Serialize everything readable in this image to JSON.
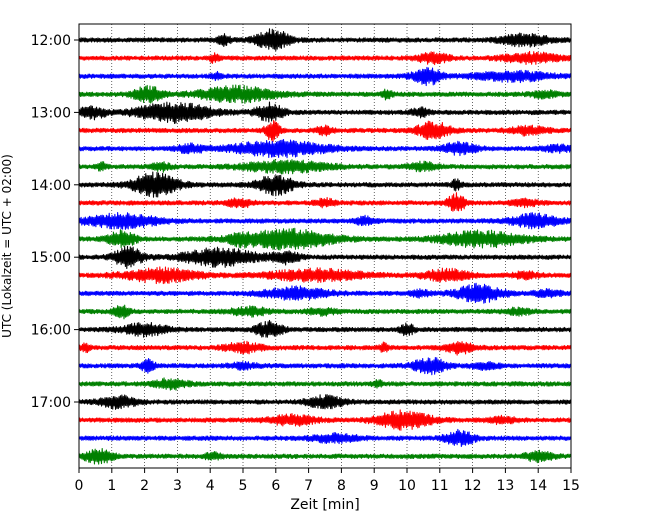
{
  "chart_data": {
    "type": "line",
    "xlabel": "Zeit  [min]",
    "ylabel": "UTC (Lokalzeit = UTC + 02:00)",
    "xlim": [
      0,
      15
    ],
    "x_ticks": [
      0,
      1,
      2,
      3,
      4,
      5,
      6,
      7,
      8,
      9,
      10,
      11,
      12,
      13,
      14,
      15
    ],
    "x_tick_labels": [
      "0",
      "1",
      "2",
      "3",
      "4",
      "5",
      "6",
      "7",
      "8",
      "9",
      "10",
      "11",
      "12",
      "13",
      "14",
      "15"
    ],
    "y_tick_labels": [
      "12:00",
      "13:00",
      "14:00",
      "15:00",
      "16:00",
      "17:00"
    ],
    "grid": "vertical dotted",
    "colors": [
      "#000000",
      "#ff0000",
      "#0000ff",
      "#008000"
    ],
    "traces": [
      {
        "start": "12:00",
        "color": "#000000",
        "bursts": [
          {
            "t": 4.4,
            "a": 0.5,
            "w": 0.15
          },
          {
            "t": 5.9,
            "a": 1.1,
            "w": 0.35
          },
          {
            "t": 13.6,
            "a": 0.6,
            "w": 0.5
          }
        ]
      },
      {
        "start": "12:15",
        "color": "#ff0000",
        "bursts": [
          {
            "t": 4.1,
            "a": 0.4,
            "w": 0.1
          },
          {
            "t": 10.8,
            "a": 0.5,
            "w": 0.35
          },
          {
            "t": 13.8,
            "a": 0.5,
            "w": 0.6
          }
        ]
      },
      {
        "start": "12:30",
        "color": "#0000ff",
        "bursts": [
          {
            "t": 4.2,
            "a": 0.3,
            "w": 0.1
          },
          {
            "t": 10.6,
            "a": 0.9,
            "w": 0.3
          },
          {
            "t": 13.2,
            "a": 0.5,
            "w": 0.8
          }
        ]
      },
      {
        "start": "12:45",
        "color": "#008000",
        "bursts": [
          {
            "t": 2.1,
            "a": 0.8,
            "w": 0.3
          },
          {
            "t": 4.8,
            "a": 0.8,
            "w": 0.8
          },
          {
            "t": 9.4,
            "a": 0.5,
            "w": 0.1
          },
          {
            "t": 14.2,
            "a": 0.3,
            "w": 0.3
          }
        ]
      },
      {
        "start": "13:00",
        "color": "#000000",
        "bursts": [
          {
            "t": 0.4,
            "a": 0.6,
            "w": 0.3
          },
          {
            "t": 2.9,
            "a": 1.0,
            "w": 0.8
          },
          {
            "t": 5.8,
            "a": 0.9,
            "w": 0.3
          },
          {
            "t": 10.4,
            "a": 0.4,
            "w": 0.2
          }
        ]
      },
      {
        "start": "13:15",
        "color": "#ff0000",
        "bursts": [
          {
            "t": 5.9,
            "a": 1.1,
            "w": 0.15
          },
          {
            "t": 7.5,
            "a": 0.4,
            "w": 0.2
          },
          {
            "t": 10.8,
            "a": 0.9,
            "w": 0.35
          },
          {
            "t": 13.7,
            "a": 0.4,
            "w": 0.4
          }
        ]
      },
      {
        "start": "13:30",
        "color": "#0000ff",
        "bursts": [
          {
            "t": 3.4,
            "a": 0.4,
            "w": 0.3
          },
          {
            "t": 6.1,
            "a": 0.8,
            "w": 1.0
          },
          {
            "t": 11.6,
            "a": 0.6,
            "w": 0.35
          },
          {
            "t": 14.6,
            "a": 0.3,
            "w": 0.3
          }
        ]
      },
      {
        "start": "13:45",
        "color": "#008000",
        "bursts": [
          {
            "t": 0.7,
            "a": 0.4,
            "w": 0.1
          },
          {
            "t": 2.5,
            "a": 0.4,
            "w": 0.2
          },
          {
            "t": 6.3,
            "a": 0.6,
            "w": 0.9
          },
          {
            "t": 10.5,
            "a": 0.4,
            "w": 0.3
          }
        ]
      },
      {
        "start": "14:00",
        "color": "#000000",
        "bursts": [
          {
            "t": 2.3,
            "a": 1.2,
            "w": 0.5
          },
          {
            "t": 6.0,
            "a": 1.0,
            "w": 0.4
          },
          {
            "t": 11.5,
            "a": 0.5,
            "w": 0.1
          }
        ]
      },
      {
        "start": "14:15",
        "color": "#ff0000",
        "bursts": [
          {
            "t": 4.9,
            "a": 0.4,
            "w": 0.3
          },
          {
            "t": 7.5,
            "a": 0.4,
            "w": 0.2
          },
          {
            "t": 11.5,
            "a": 0.9,
            "w": 0.2
          },
          {
            "t": 13.6,
            "a": 0.3,
            "w": 0.3
          }
        ]
      },
      {
        "start": "14:30",
        "color": "#0000ff",
        "bursts": [
          {
            "t": 1.3,
            "a": 0.7,
            "w": 0.8
          },
          {
            "t": 8.7,
            "a": 0.4,
            "w": 0.2
          },
          {
            "t": 13.9,
            "a": 0.7,
            "w": 0.5
          }
        ]
      },
      {
        "start": "14:45",
        "color": "#008000",
        "bursts": [
          {
            "t": 1.3,
            "a": 0.8,
            "w": 0.3
          },
          {
            "t": 4.9,
            "a": 0.4,
            "w": 0.2
          },
          {
            "t": 6.3,
            "a": 1.0,
            "w": 1.0
          },
          {
            "t": 12.3,
            "a": 0.8,
            "w": 0.9
          }
        ]
      },
      {
        "start": "15:00",
        "color": "#000000",
        "bursts": [
          {
            "t": 1.5,
            "a": 1.1,
            "w": 0.3
          },
          {
            "t": 4.3,
            "a": 0.9,
            "w": 0.8
          },
          {
            "t": 6.3,
            "a": 0.6,
            "w": 0.3
          }
        ]
      },
      {
        "start": "15:15",
        "color": "#ff0000",
        "bursts": [
          {
            "t": 2.5,
            "a": 0.7,
            "w": 0.8
          },
          {
            "t": 7.2,
            "a": 0.6,
            "w": 1.0
          },
          {
            "t": 11.2,
            "a": 0.6,
            "w": 0.5
          },
          {
            "t": 13.6,
            "a": 0.3,
            "w": 0.3
          }
        ]
      },
      {
        "start": "15:30",
        "color": "#0000ff",
        "bursts": [
          {
            "t": 6.6,
            "a": 0.6,
            "w": 0.7
          },
          {
            "t": 10.4,
            "a": 0.3,
            "w": 0.2
          },
          {
            "t": 12.2,
            "a": 0.9,
            "w": 0.5
          },
          {
            "t": 14.3,
            "a": 0.3,
            "w": 0.3
          }
        ]
      },
      {
        "start": "15:45",
        "color": "#008000",
        "bursts": [
          {
            "t": 1.3,
            "a": 0.8,
            "w": 0.15
          },
          {
            "t": 5.2,
            "a": 0.4,
            "w": 0.4
          },
          {
            "t": 7.4,
            "a": 0.3,
            "w": 0.3
          },
          {
            "t": 13.4,
            "a": 0.3,
            "w": 0.3
          }
        ]
      },
      {
        "start": "16:00",
        "color": "#000000",
        "bursts": [
          {
            "t": 2.0,
            "a": 0.6,
            "w": 0.5
          },
          {
            "t": 5.8,
            "a": 0.8,
            "w": 0.3
          },
          {
            "t": 10.0,
            "a": 0.6,
            "w": 0.15
          }
        ]
      },
      {
        "start": "16:15",
        "color": "#ff0000",
        "bursts": [
          {
            "t": 0.2,
            "a": 0.4,
            "w": 0.1
          },
          {
            "t": 5.0,
            "a": 0.5,
            "w": 0.4
          },
          {
            "t": 9.3,
            "a": 0.4,
            "w": 0.1
          },
          {
            "t": 11.6,
            "a": 0.6,
            "w": 0.3
          }
        ]
      },
      {
        "start": "16:30",
        "color": "#0000ff",
        "bursts": [
          {
            "t": 2.1,
            "a": 0.6,
            "w": 0.15
          },
          {
            "t": 5.0,
            "a": 0.3,
            "w": 0.3
          },
          {
            "t": 10.7,
            "a": 0.8,
            "w": 0.35
          },
          {
            "t": 12.4,
            "a": 0.3,
            "w": 0.3
          }
        ]
      },
      {
        "start": "16:45",
        "color": "#008000",
        "bursts": [
          {
            "t": 2.8,
            "a": 0.5,
            "w": 0.35
          },
          {
            "t": 9.1,
            "a": 0.4,
            "w": 0.1
          }
        ]
      },
      {
        "start": "17:00",
        "color": "#000000",
        "bursts": [
          {
            "t": 1.2,
            "a": 0.6,
            "w": 0.4
          },
          {
            "t": 7.5,
            "a": 0.6,
            "w": 0.4
          }
        ]
      },
      {
        "start": "17:15",
        "color": "#ff0000",
        "bursts": [
          {
            "t": 6.5,
            "a": 0.5,
            "w": 0.5
          },
          {
            "t": 9.9,
            "a": 0.9,
            "w": 0.6
          },
          {
            "t": 12.9,
            "a": 0.3,
            "w": 0.3
          }
        ]
      },
      {
        "start": "17:30",
        "color": "#0000ff",
        "bursts": [
          {
            "t": 7.8,
            "a": 0.4,
            "w": 0.5
          },
          {
            "t": 11.6,
            "a": 0.8,
            "w": 0.3
          }
        ]
      },
      {
        "start": "17:45",
        "color": "#008000",
        "bursts": [
          {
            "t": 0.6,
            "a": 0.7,
            "w": 0.3
          },
          {
            "t": 4.1,
            "a": 0.3,
            "w": 0.2
          },
          {
            "t": 14.0,
            "a": 0.5,
            "w": 0.3
          }
        ]
      }
    ]
  }
}
